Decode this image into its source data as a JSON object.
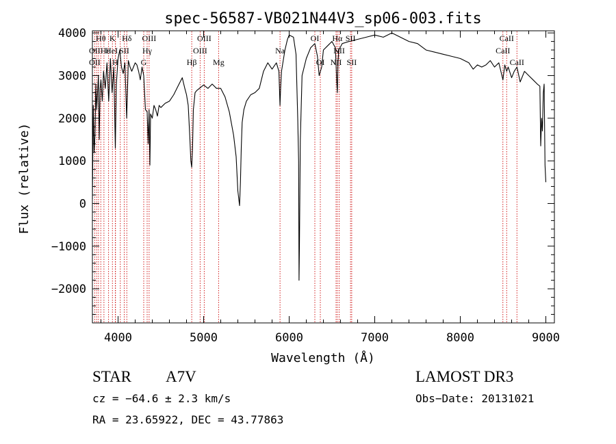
{
  "chart_data": {
    "type": "line",
    "title": "spec-56587-VB021N44V3_sp06-003.fits",
    "xlabel": "Wavelength (Å)",
    "ylabel": "Flux (relative)",
    "xlim": [
      3700,
      9100
    ],
    "ylim": [
      -2800,
      4050
    ],
    "x_ticks": [
      4000,
      5000,
      6000,
      7000,
      8000,
      9000
    ],
    "y_ticks": [
      -2000,
      -1000,
      0,
      1000,
      2000,
      3000,
      4000
    ],
    "x_tick_labels": [
      "4000",
      "5000",
      "6000",
      "7000",
      "8000",
      "9000"
    ],
    "y_tick_labels": [
      "−2000",
      "−1000",
      "0",
      "1000",
      "2000",
      "3000",
      "4000"
    ],
    "grid": false,
    "series": [
      {
        "color": "#000000",
        "x": [
          3700,
          3710,
          3720,
          3730,
          3740,
          3750,
          3760,
          3770,
          3780,
          3790,
          3800,
          3815,
          3830,
          3850,
          3870,
          3890,
          3910,
          3930,
          3950,
          3968,
          3980,
          4000,
          4020,
          4040,
          4060,
          4080,
          4101,
          4120,
          4140,
          4160,
          4180,
          4200,
          4220,
          4240,
          4260,
          4280,
          4300,
          4320,
          4340,
          4352,
          4362,
          4372,
          4380,
          4400,
          4420,
          4440,
          4460,
          4480,
          4500,
          4550,
          4600,
          4650,
          4700,
          4750,
          4780,
          4800,
          4820,
          4840,
          4850,
          4861,
          4870,
          4880,
          4900,
          4920,
          4950,
          5000,
          5050,
          5100,
          5150,
          5200,
          5250,
          5300,
          5350,
          5380,
          5400,
          5420,
          5430,
          5440,
          5450,
          5470,
          5500,
          5550,
          5600,
          5650,
          5700,
          5750,
          5800,
          5850,
          5880,
          5893,
          5900,
          5910,
          5950,
          5980,
          6000,
          6050,
          6080,
          6100,
          6110,
          6115,
          6120,
          6130,
          6150,
          6200,
          6250,
          6300,
          6330,
          6350,
          6380,
          6400,
          6450,
          6500,
          6540,
          6555,
          6563,
          6570,
          6580,
          6620,
          6700,
          6800,
          6900,
          7000,
          7100,
          7200,
          7300,
          7400,
          7500,
          7600,
          7700,
          7800,
          7900,
          8000,
          8100,
          8150,
          8200,
          8250,
          8300,
          8350,
          8400,
          8450,
          8498,
          8520,
          8542,
          8560,
          8600,
          8630,
          8662,
          8700,
          8750,
          8800,
          8850,
          8900,
          8930,
          8940,
          8950,
          8960,
          8970,
          8980,
          8990,
          9000
        ],
        "y": [
          100,
          2300,
          1200,
          1600,
          2800,
          2200,
          2600,
          3000,
          1500,
          2700,
          2900,
          2400,
          3100,
          2700,
          3300,
          2400,
          3400,
          2600,
          3200,
          1300,
          2800,
          3400,
          3600,
          3200,
          3050,
          3300,
          2000,
          3350,
          3200,
          3100,
          3200,
          3300,
          3250,
          3100,
          2900,
          3200,
          3000,
          2200,
          2150,
          1400,
          2200,
          900,
          2100,
          2000,
          2300,
          2200,
          2050,
          2300,
          2250,
          2350,
          2400,
          2550,
          2750,
          2950,
          2700,
          2550,
          2300,
          1500,
          1000,
          850,
          1300,
          2200,
          2600,
          2650,
          2700,
          2780,
          2700,
          2800,
          2700,
          2700,
          2500,
          2150,
          1600,
          1100,
          300,
          -50,
          500,
          1300,
          1900,
          2200,
          2400,
          2550,
          2600,
          2700,
          3100,
          3300,
          3150,
          3300,
          3100,
          2300,
          2700,
          3100,
          3600,
          3850,
          3950,
          3900,
          3500,
          2000,
          1000,
          -1800,
          -1000,
          1500,
          3000,
          3400,
          3650,
          3750,
          3450,
          3000,
          3200,
          3600,
          3700,
          3800,
          3650,
          2900,
          2600,
          3300,
          3600,
          3750,
          3800,
          3850,
          3900,
          3950,
          3900,
          4000,
          3900,
          3800,
          3750,
          3600,
          3550,
          3500,
          3450,
          3400,
          3300,
          3150,
          3250,
          3200,
          3250,
          3350,
          3200,
          3300,
          2900,
          3250,
          3100,
          3200,
          2950,
          3100,
          3200,
          2850,
          3100,
          3000,
          2900,
          2800,
          2750,
          1350,
          2000,
          1700,
          2600,
          2800,
          900,
          500
        ]
      }
    ],
    "lines": {
      "color": "#cc0000",
      "wavelengths": [
        3727,
        3750,
        3771,
        3798,
        3835,
        3889,
        3934,
        3968,
        3970,
        4026,
        4072,
        4102,
        4300,
        4340,
        4363,
        4861,
        4959,
        5007,
        5175,
        5893,
        6300,
        6364,
        6548,
        6563,
        6584,
        6717,
        6731,
        8498,
        8542,
        8662
      ],
      "labels": [
        {
          "text": "Hθ",
          "x": 3798,
          "row": 0
        },
        {
          "text": "K",
          "x": 3934,
          "row": 0
        },
        {
          "text": "Hδ",
          "x": 4102,
          "row": 0
        },
        {
          "text": "OIII",
          "x": 4363,
          "row": 0
        },
        {
          "text": "OIII",
          "x": 5007,
          "row": 0
        },
        {
          "text": "OI",
          "x": 6300,
          "row": 0
        },
        {
          "text": "Hα",
          "x": 6563,
          "row": 0
        },
        {
          "text": "SII",
          "x": 6717,
          "row": 0
        },
        {
          "text": "CaII",
          "x": 8542,
          "row": 0
        },
        {
          "text": "OII",
          "x": 3727,
          "row": 1
        },
        {
          "text": "Hε",
          "x": 3850,
          "row": 1
        },
        {
          "text": "HeI",
          "x": 3925,
          "row": 1
        },
        {
          "text": "SII",
          "x": 4072,
          "row": 1
        },
        {
          "text": "Hγ",
          "x": 4340,
          "row": 1
        },
        {
          "text": "OIII",
          "x": 4959,
          "row": 1
        },
        {
          "text": "Na",
          "x": 5893,
          "row": 1
        },
        {
          "text": "NII",
          "x": 6584,
          "row": 1
        },
        {
          "text": "CaII",
          "x": 8498,
          "row": 1
        },
        {
          "text": "OII",
          "x": 3727,
          "row": 2
        },
        {
          "text": "H",
          "x": 3968,
          "row": 2
        },
        {
          "text": "G",
          "x": 4300,
          "row": 2
        },
        {
          "text": "Hβ",
          "x": 4861,
          "row": 2
        },
        {
          "text": "Mg",
          "x": 5175,
          "row": 2
        },
        {
          "text": "OI",
          "x": 6364,
          "row": 2
        },
        {
          "text": "NII",
          "x": 6548,
          "row": 2
        },
        {
          "text": "SII",
          "x": 6731,
          "row": 2
        },
        {
          "text": "CaII",
          "x": 8662,
          "row": 2
        }
      ]
    }
  },
  "info": {
    "object_class": "STAR",
    "subclass": "A7V",
    "survey": "LAMOST DR3",
    "redshift": "cz = −64.6 ± 2.3 km/s",
    "obs_date": "Obs−Date: 20131021",
    "coords": "RA =  23.65922, DEC =  43.77863"
  }
}
